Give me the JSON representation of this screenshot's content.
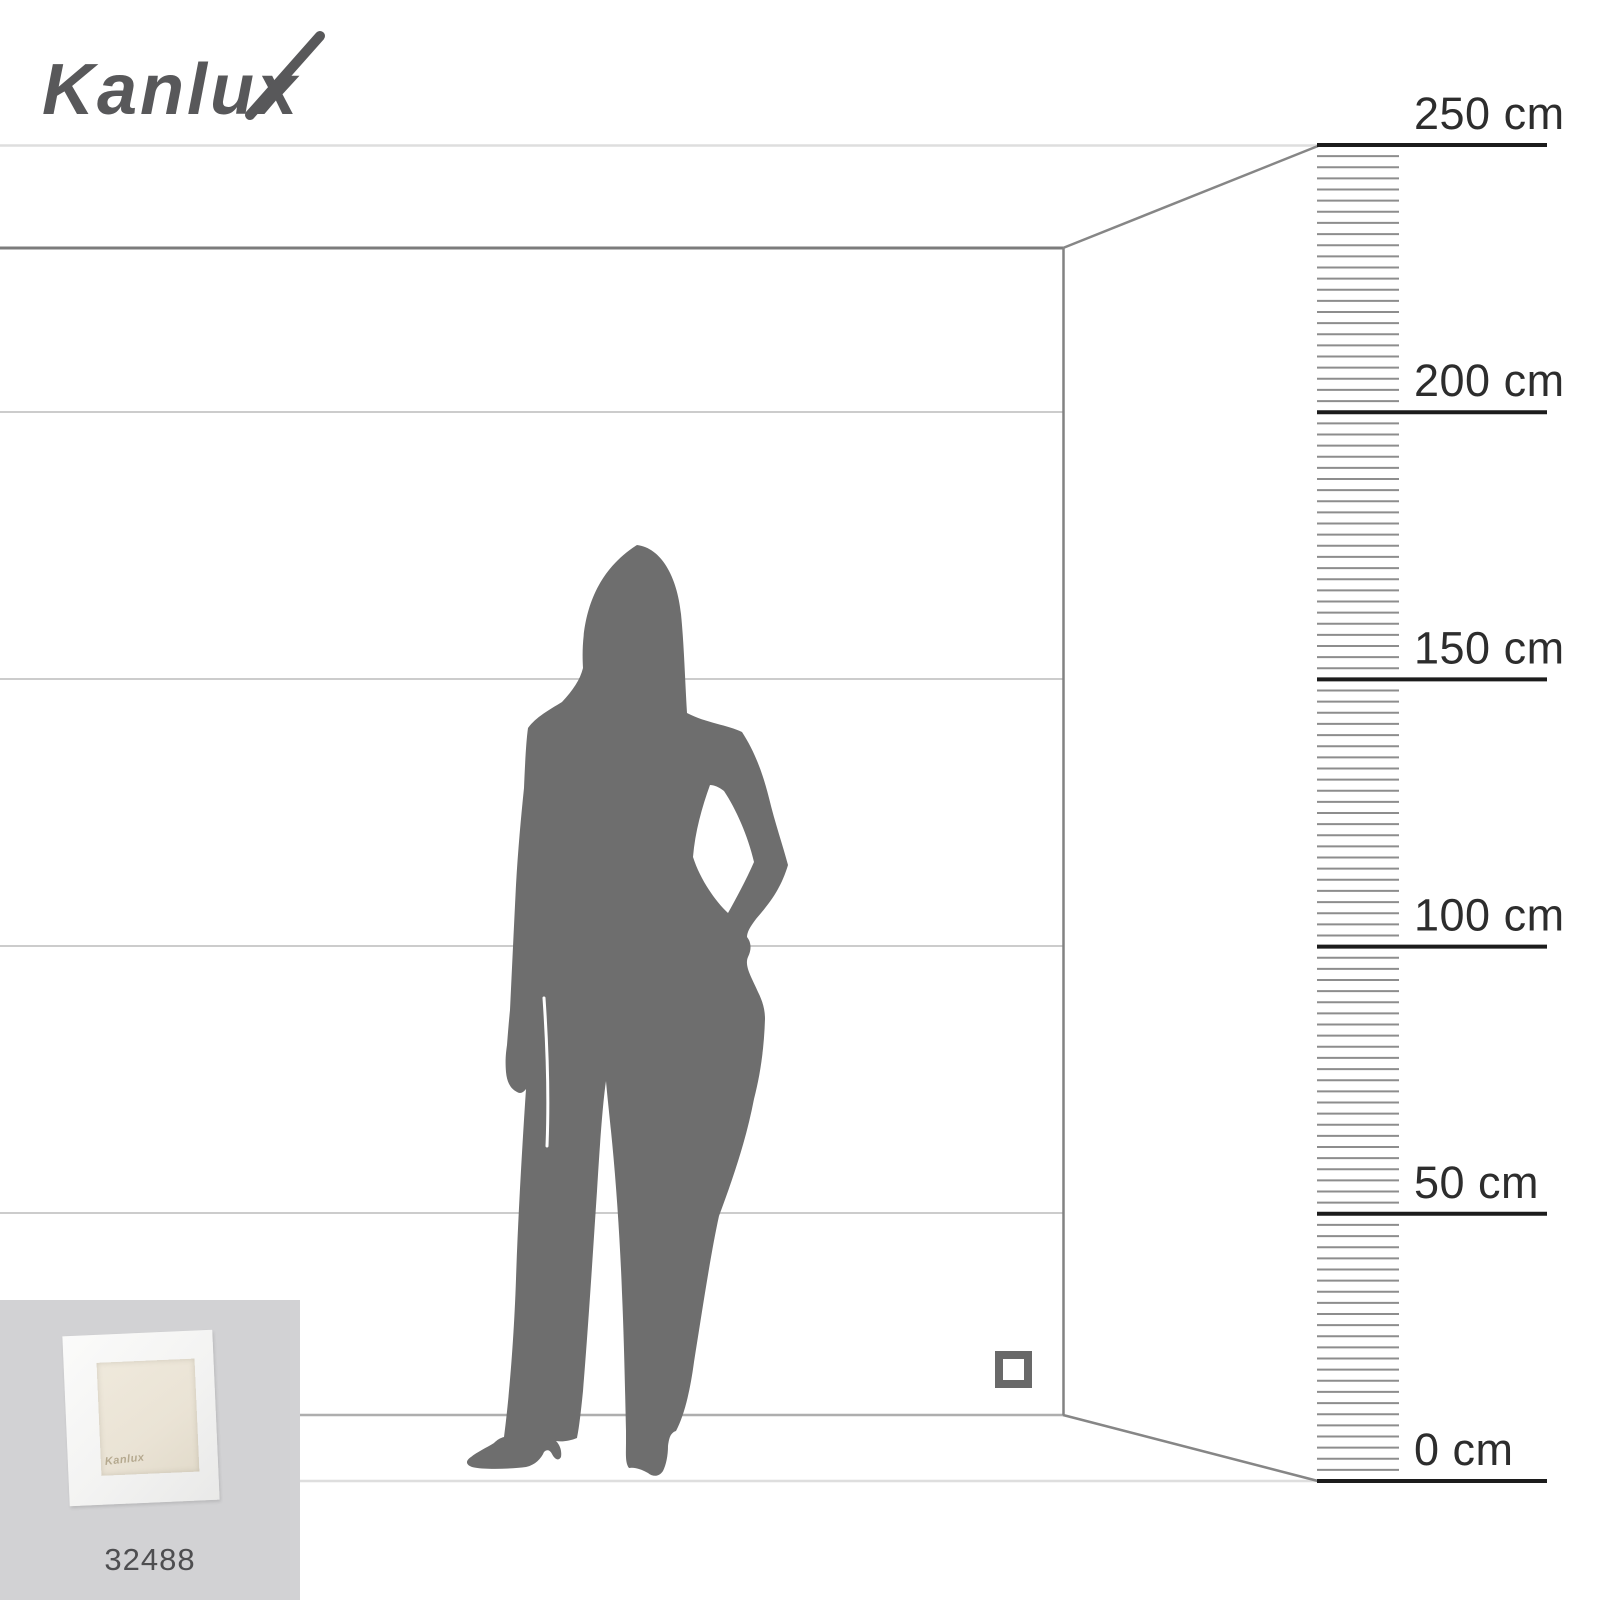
{
  "brand": {
    "name": "Kanlux",
    "color": "#58585a"
  },
  "ruler": {
    "unit": "cm",
    "labels": [
      "250 cm",
      "200 cm",
      "150 cm",
      "100 cm",
      "50 cm",
      "0 cm"
    ],
    "values_cm": [
      250,
      200,
      150,
      100,
      50,
      0
    ],
    "minor_ticks_between_majors": 23,
    "colors": {
      "major_line": "#1c1c1c",
      "minor_tick": "#8d8d8d",
      "label": "#2d2d2d"
    }
  },
  "room": {
    "wall_guide_values_cm": [
      250,
      200,
      150,
      100,
      50,
      0
    ],
    "colors": {
      "front_edge": "#dedede",
      "wall_guide": "#cccccc",
      "wall_top_edge": "#7c7c7c",
      "wall_bottom_edge": "#aeaeae",
      "corner": "#828282",
      "diagonal": "#868686"
    }
  },
  "wall_marker": {
    "shape": "square-outline",
    "color": "#696969"
  },
  "figure": {
    "type": "woman-silhouette",
    "color": "#6e6e6e"
  },
  "product": {
    "code": "32488",
    "watermark": "Kanlux"
  }
}
